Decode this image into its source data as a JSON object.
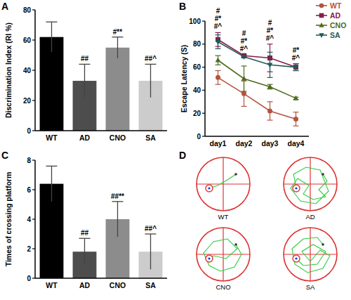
{
  "chart_data": [
    {
      "type": "bar",
      "title": "A",
      "categories": [
        "WT",
        "AD",
        "CNO",
        "SA"
      ],
      "values": [
        62,
        33,
        55,
        33
      ],
      "errors": [
        10,
        11,
        7,
        11
      ],
      "colors": [
        "#000000",
        "#4d4d4d",
        "#8c8c8c",
        "#cccccc"
      ],
      "ylim": [
        0,
        80
      ],
      "yticks": [
        0,
        20,
        40,
        60,
        80
      ],
      "y_label": "Discrimination Index (RI %)",
      "annotations": [
        {
          "x": "AD",
          "text": "##"
        },
        {
          "x": "CNO",
          "text": "#**"
        },
        {
          "x": "SA",
          "text": "##^"
        }
      ]
    },
    {
      "type": "line",
      "title": "B",
      "categories": [
        "day1",
        "day2",
        "day3",
        "day4"
      ],
      "series": [
        {
          "name": "WT",
          "color": "#b5533c",
          "marker": "circle",
          "values": [
            51,
            37,
            22,
            15
          ],
          "errors": [
            6,
            11,
            8,
            6
          ]
        },
        {
          "name": "AD",
          "color": "#8b1a4a",
          "marker": "square",
          "values": [
            84,
            70,
            68,
            60
          ],
          "errors": [
            6,
            1,
            12,
            3
          ]
        },
        {
          "name": "CNO",
          "color": "#4f6b1f",
          "marker": "triangle",
          "values": [
            66,
            50,
            43,
            33
          ],
          "errors": [
            4,
            11,
            2,
            1
          ]
        },
        {
          "name": "SA",
          "color": "#1f5a5a",
          "marker": "triangle-down",
          "values": [
            82,
            69,
            62,
            60
          ],
          "errors": [
            6,
            1,
            11,
            3
          ]
        }
      ],
      "ylim": [
        0,
        100
      ],
      "yticks": [
        0,
        20,
        40,
        60,
        80,
        100
      ],
      "y_label": "Escape Latency (S)",
      "legend": "top-right",
      "annotations": [
        {
          "x": "day1",
          "text": "#"
        },
        {
          "x": "day1",
          "text": "#*"
        },
        {
          "x": "day1",
          "text": "#^"
        },
        {
          "x": "day2",
          "text": "#"
        },
        {
          "x": "day2",
          "text": "#*"
        },
        {
          "x": "day2",
          "text": "#^"
        },
        {
          "x": "day3",
          "text": "#"
        },
        {
          "x": "day3",
          "text": "#*"
        },
        {
          "x": "day3",
          "text": "#^"
        },
        {
          "x": "day4",
          "text": "#*"
        },
        {
          "x": "day4",
          "text": "#^"
        }
      ]
    },
    {
      "type": "bar",
      "title": "C",
      "categories": [
        "WT",
        "AD",
        "CNO",
        "SA"
      ],
      "values": [
        6.4,
        1.8,
        4.0,
        1.8
      ],
      "errors": [
        1.2,
        0.9,
        1.2,
        1.2
      ],
      "colors": [
        "#000000",
        "#4d4d4d",
        "#8c8c8c",
        "#cccccc"
      ],
      "ylim": [
        0,
        8
      ],
      "yticks": [
        0,
        2,
        4,
        6,
        8
      ],
      "y_label": "Times of crossing platform",
      "annotations": [
        {
          "x": "AD",
          "text": "##"
        },
        {
          "x": "CNO",
          "text": "##**"
        },
        {
          "x": "SA",
          "text": "##^"
        }
      ]
    }
  ],
  "figure_d": {
    "label": "D",
    "tracks": [
      "WT",
      "AD",
      "CNO",
      "SA"
    ]
  }
}
